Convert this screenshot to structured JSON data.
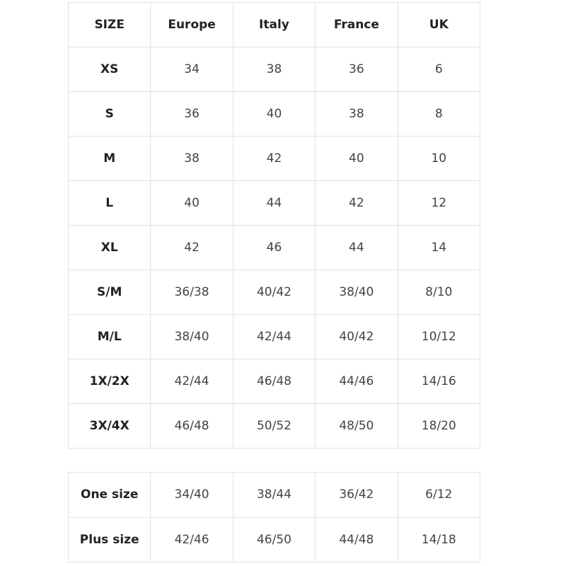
{
  "main_table": {
    "headers": [
      "SIZE",
      "Europe",
      "Italy",
      "France",
      "UK"
    ],
    "rows": [
      [
        "XS",
        "34",
        "38",
        "36",
        "6"
      ],
      [
        "S",
        "36",
        "40",
        "38",
        "8"
      ],
      [
        "M",
        "38",
        "42",
        "40",
        "10"
      ],
      [
        "L",
        "40",
        "44",
        "42",
        "12"
      ],
      [
        "XL",
        "42",
        "46",
        "44",
        "14"
      ],
      [
        "S/M",
        "36/38",
        "40/42",
        "38/40",
        "8/10"
      ],
      [
        "M/L",
        "38/40",
        "42/44",
        "40/42",
        "10/12"
      ],
      [
        "1X/2X",
        "42/44",
        "46/48",
        "44/46",
        "14/16"
      ],
      [
        "3X/4X",
        "46/48",
        "50/52",
        "48/50",
        "18/20"
      ]
    ]
  },
  "special_table": {
    "rows": [
      [
        "One size",
        "34/40",
        "38/44",
        "36/42",
        "6/12"
      ],
      [
        "Plus size",
        "42/46",
        "46/50",
        "44/48",
        "14/18"
      ]
    ]
  }
}
